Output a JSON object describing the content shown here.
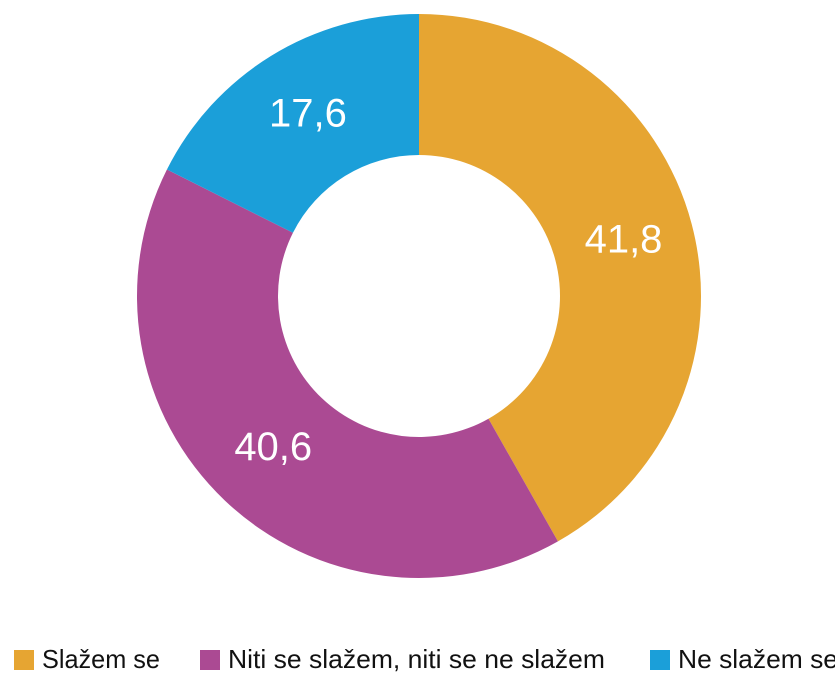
{
  "chart_data": {
    "type": "pie",
    "categories": [
      "Slažem se",
      "Niti se slažem, niti se ne slažem",
      "Ne slažem se"
    ],
    "values": [
      41.8,
      40.6,
      17.6
    ],
    "value_labels": [
      "41,8",
      "40,6",
      "17,6"
    ],
    "colors": [
      "#E6A532",
      "#AB4A93",
      "#1B9FD9"
    ],
    "donut": true,
    "legend": "bottom"
  }
}
